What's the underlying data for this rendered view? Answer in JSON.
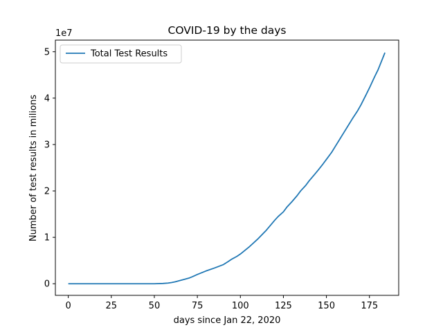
{
  "chart_data": {
    "type": "line",
    "title": "COVID-19 by the days",
    "xlabel": "days since Jan 22, 2020",
    "ylabel": "Number of test results in milions",
    "y_offset_label": "1e7",
    "xlim": [
      -7.5,
      192
    ],
    "ylim": [
      -2500000,
      52500000
    ],
    "xticks": [
      0,
      25,
      50,
      75,
      100,
      125,
      150,
      175
    ],
    "yticks": [
      0,
      10000000,
      20000000,
      30000000,
      40000000,
      50000000
    ],
    "ytick_labels": [
      "0",
      "1",
      "2",
      "3",
      "4",
      "5"
    ],
    "grid": false,
    "legend_position": "top-left",
    "color": "#1f77b4",
    "series": [
      {
        "name": "Total Test Results",
        "x": [
          0,
          10,
          20,
          30,
          40,
          50,
          55,
          58,
          60,
          62,
          65,
          68,
          70,
          72,
          75,
          78,
          80,
          85,
          90,
          93,
          95,
          98,
          100,
          105,
          110,
          115,
          120,
          122,
          125,
          127,
          130,
          133,
          135,
          138,
          140,
          143,
          145,
          148,
          150,
          153,
          155,
          158,
          160,
          163,
          165,
          168,
          170,
          173,
          175,
          178,
          180,
          184
        ],
        "y": [
          0,
          0,
          0,
          0,
          0,
          0,
          60000,
          150000,
          260000,
          400000,
          700000,
          1000000,
          1200000,
          1500000,
          2000000,
          2450000,
          2750000,
          3400000,
          4100000,
          4800000,
          5300000,
          5900000,
          6400000,
          7900000,
          9600000,
          11500000,
          13700000,
          14500000,
          15500000,
          16500000,
          17700000,
          19000000,
          20000000,
          21200000,
          22200000,
          23500000,
          24400000,
          25800000,
          26800000,
          28300000,
          29500000,
          31300000,
          32500000,
          34300000,
          35500000,
          37200000,
          38500000,
          40700000,
          42200000,
          44600000,
          46100000,
          49800000
        ]
      }
    ]
  }
}
